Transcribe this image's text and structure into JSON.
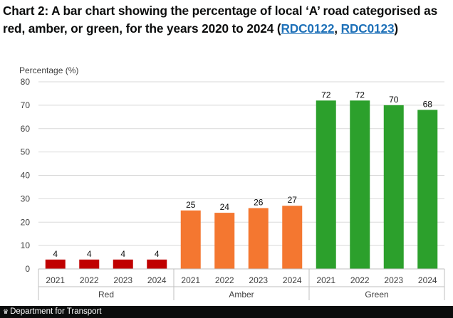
{
  "title": {
    "text_before": "Chart 2: A bar chart showing the percentage of local ‘A’ road categorised as red, amber, or green, for the years 2020 to 2024 (",
    "link1": "RDC0122",
    "separator": ", ",
    "link2": "RDC0123",
    "text_after": ")"
  },
  "footer": {
    "text": "Department for Transport",
    "icon": "crown-icon"
  },
  "chart_data": {
    "type": "bar",
    "ylabel": "Percentage (%)",
    "ylim": [
      0,
      80
    ],
    "yticks": [
      0,
      10,
      20,
      30,
      40,
      50,
      60,
      70,
      80
    ],
    "grid": true,
    "groups": [
      {
        "name": "Red",
        "color": "#c00000",
        "categories": [
          "2021",
          "2022",
          "2023",
          "2024"
        ],
        "values": [
          4,
          4,
          4,
          4
        ]
      },
      {
        "name": "Amber",
        "color": "#f47730",
        "categories": [
          "2021",
          "2022",
          "2023",
          "2024"
        ],
        "values": [
          25,
          24,
          26,
          27
        ]
      },
      {
        "name": "Green",
        "color": "#2ca02c",
        "categories": [
          "2021",
          "2022",
          "2023",
          "2024"
        ],
        "values": [
          72,
          72,
          70,
          68
        ]
      }
    ]
  }
}
